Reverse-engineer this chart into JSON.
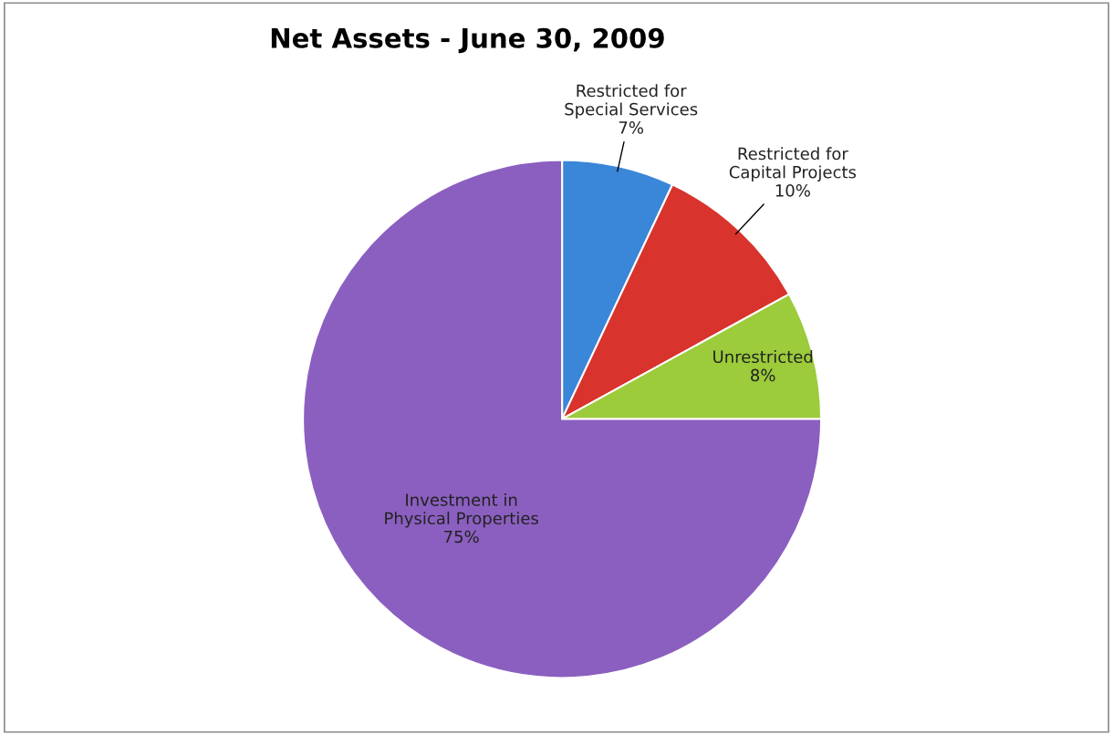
{
  "chart_data": {
    "type": "pie",
    "title": "Net Assets - June 30, 2009",
    "categories": [
      "Restricted for\nSpecial Services",
      "Restricted for\nCapital Projects",
      "Unrestricted",
      "Investment in\nPhysical Properties"
    ],
    "values": [
      7,
      10,
      8,
      75
    ],
    "value_labels": [
      "7%",
      "10%",
      "8%",
      "75%"
    ],
    "colors": [
      "#3a86d8",
      "#d8332c",
      "#9ccb3b",
      "#8b5fc0"
    ],
    "legend": false
  }
}
